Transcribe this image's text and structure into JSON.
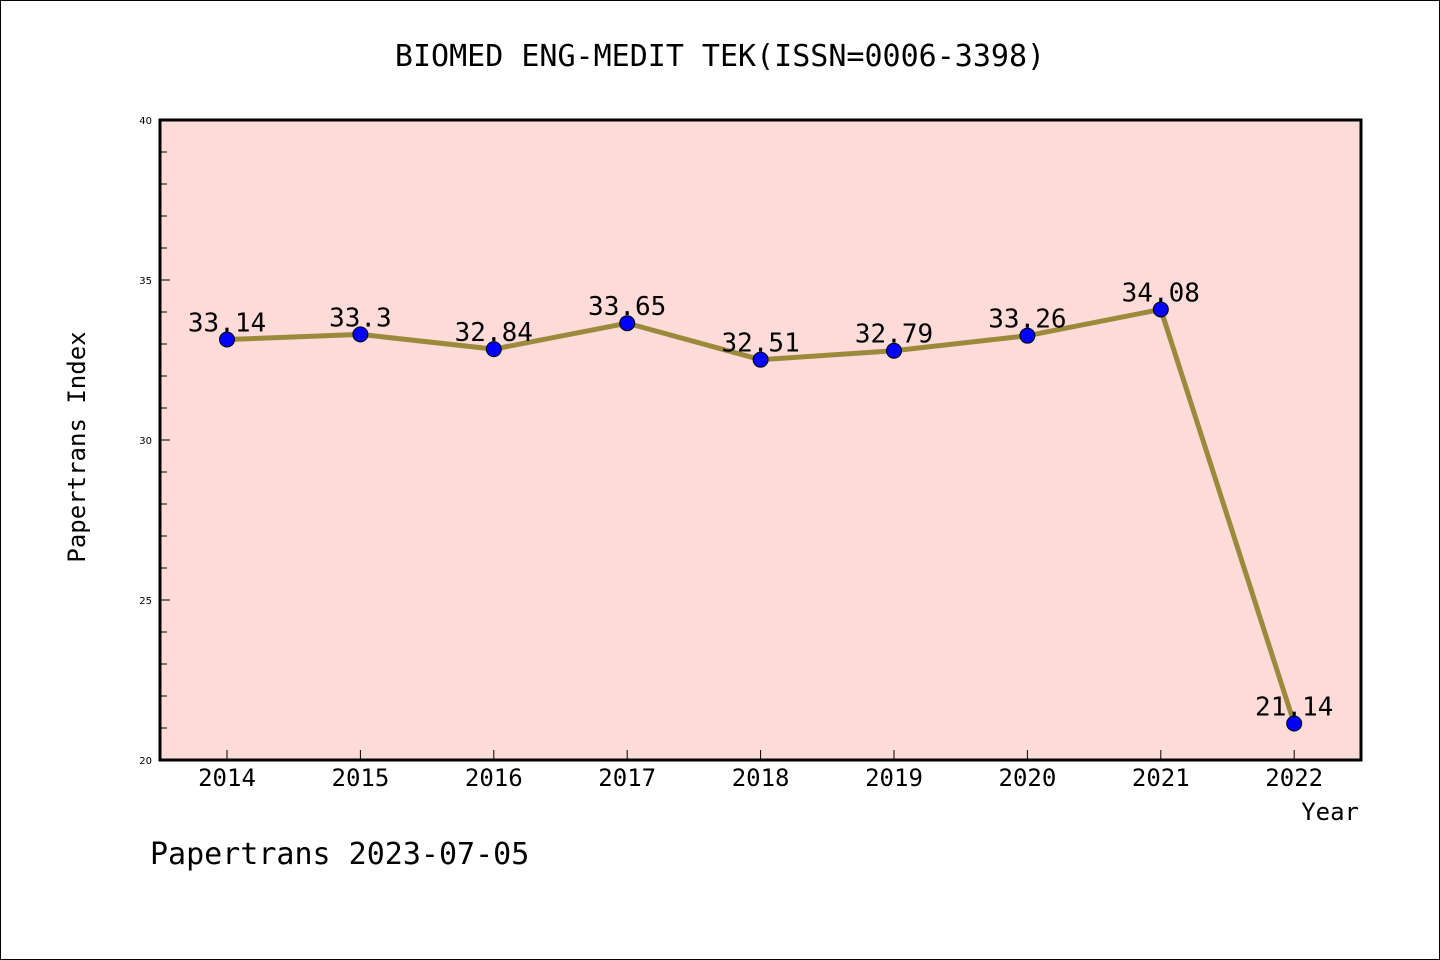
{
  "chart_data": {
    "type": "line",
    "title": "BIOMED ENG-MEDIT TEK(ISSN=0006-3398)",
    "xlabel": "Year",
    "ylabel": "Papertrans Index",
    "categories": [
      "2014",
      "2015",
      "2016",
      "2017",
      "2018",
      "2019",
      "2020",
      "2021",
      "2022"
    ],
    "values": [
      33.14,
      33.3,
      32.84,
      33.65,
      32.51,
      32.79,
      33.26,
      34.08,
      21.14
    ],
    "data_labels": [
      "33.14",
      "33.3",
      "32.84",
      "33.65",
      "32.51",
      "32.79",
      "33.26",
      "34.08",
      "21.14"
    ],
    "ylim": [
      20,
      40
    ],
    "y_ticks": [
      "20",
      "25",
      "30",
      "35",
      "40"
    ],
    "grid": false,
    "plot_background": "#fddbd8",
    "line_color": "#9b8a3c",
    "marker_color": "#0000ff"
  },
  "footer": "Papertrans 2023-07-05"
}
